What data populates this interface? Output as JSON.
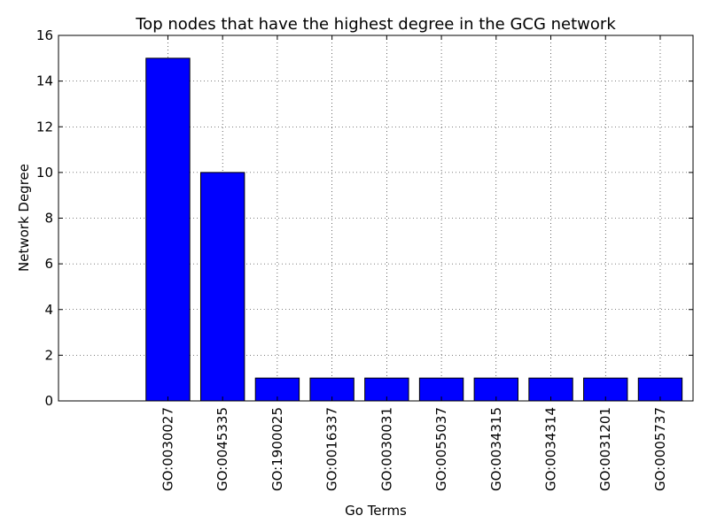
{
  "chart_data": {
    "type": "bar",
    "title": "Top nodes that have the highest degree in the GCG network",
    "xlabel": "Go Terms",
    "ylabel": "Network Degree",
    "categories": [
      "GO:0030027",
      "GO:0045335",
      "GO:1900025",
      "GO:0016337",
      "GO:0030031",
      "GO:0055037",
      "GO:0034315",
      "GO:0034314",
      "GO:0031201",
      "GO:0005737"
    ],
    "values": [
      15,
      10,
      1,
      1,
      1,
      1,
      1,
      1,
      1,
      1
    ],
    "ylim": [
      0,
      16
    ],
    "yticks": [
      0,
      2,
      4,
      6,
      8,
      10,
      12,
      14,
      16
    ],
    "xlim": [
      -1.6,
      10
    ],
    "grid": true,
    "bar_color": "#0000ff"
  }
}
